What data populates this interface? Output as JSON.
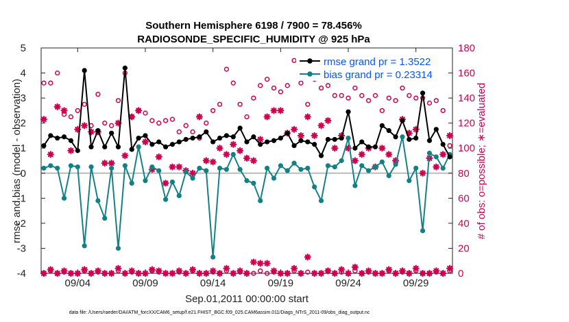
{
  "colors": {
    "rmse": "#000000",
    "bias": "#138086",
    "counts": "#d1004f",
    "legend_text": "#0055ff",
    "zero_line": "#bbbbbb"
  },
  "chart_data": {
    "type": "line",
    "title_line1": "Southern Hemisphere 6198 / 7900 = 78.456%",
    "title_line2": "RADIOSONDE_SPECIFIC_HUMIDITY @ 925 hPa",
    "xlabel": "Sep.01,2011 00:00:00 start",
    "ylabel_left": "rmse and bias (model - observation)",
    "ylabel_right": "# of obs: o=possible; ∗=evaluated",
    "xlim": [
      0.3,
      30.7
    ],
    "ylim_left": [
      -4,
      5
    ],
    "ylim_right": [
      0,
      180
    ],
    "x_ticks": [
      3,
      8,
      13,
      18,
      23,
      28
    ],
    "x_tick_labels": [
      "09/04",
      "09/09",
      "09/14",
      "09/19",
      "09/24",
      "09/29"
    ],
    "yleft_ticks": [
      -4,
      -3,
      -2,
      -1,
      0,
      1,
      2,
      3,
      4,
      5
    ],
    "yleft_tick_labels": [
      "-4",
      "-3",
      "-2",
      "-1",
      "0",
      "1",
      "2",
      "3",
      "4",
      "5"
    ],
    "yright_ticks": [
      0,
      20,
      40,
      60,
      80,
      100,
      120,
      140,
      160,
      180
    ],
    "yright_tick_labels": [
      "0",
      "20",
      "40",
      "60",
      "80",
      "100",
      "120",
      "140",
      "160",
      "180"
    ],
    "legend": [
      "rmse grand pr = 1.3522",
      "bias grand pr = 0.23314"
    ],
    "legend_position": "top-right",
    "footnote": "data file: /Users/raeder/DAI/ATM_forcXX/CAM6_setup/f.e21.FHIST_BGC.f09_025.CAM6assim.011/Diags_NTrS_2011-09/obs_diag_output.nc",
    "x": [
      0.5,
      1.0,
      1.5,
      2.0,
      2.5,
      3.0,
      3.5,
      4.0,
      4.5,
      5.0,
      5.5,
      6.0,
      6.5,
      7.0,
      7.5,
      8.0,
      8.5,
      9.0,
      9.5,
      10.0,
      10.5,
      11.0,
      11.5,
      12.0,
      12.5,
      13.0,
      13.5,
      14.0,
      14.5,
      15.0,
      15.5,
      16.0,
      16.5,
      17.0,
      17.5,
      18.0,
      18.5,
      19.0,
      19.5,
      20.0,
      20.5,
      21.0,
      21.5,
      22.0,
      22.5,
      23.0,
      23.5,
      24.0,
      24.5,
      25.0,
      25.5,
      26.0,
      26.5,
      27.0,
      27.5,
      28.0,
      28.5,
      29.0,
      29.5,
      30.0,
      30.5
    ],
    "series": [
      {
        "name": "rmse",
        "values": [
          1.1,
          1.5,
          1.4,
          1.45,
          1.3,
          0.9,
          4.1,
          1.05,
          1.7,
          1.05,
          1.6,
          1.05,
          4.2,
          0.95,
          1.4,
          1.5,
          1.15,
          1.25,
          1.05,
          1.15,
          1.25,
          1.35,
          1.4,
          1.45,
          1.65,
          1.25,
          1.4,
          1.5,
          1.45,
          1.8,
          1.25,
          1.45,
          1.15,
          1.25,
          1.3,
          1.4,
          1.6,
          1.1,
          1.3,
          1.25,
          1.15,
          0.7,
          1.35,
          1.35,
          1.4,
          2.45,
          1.0,
          1.25,
          1.05,
          1.05,
          1.9,
          1.7,
          1.45,
          2.1,
          1.35,
          1.4,
          3.2,
          1.3,
          1.75,
          1.15,
          0.65
        ]
      },
      {
        "name": "bias",
        "values": [
          0.2,
          0.3,
          0.2,
          -1.0,
          0.3,
          0.25,
          -2.9,
          0.25,
          -1.1,
          -1.8,
          0.2,
          -3.0,
          0.3,
          -0.4,
          1.05,
          -0.3,
          0.25,
          0.1,
          -1.05,
          -0.35,
          -0.9,
          0.05,
          -0.2,
          0.2,
          0.1,
          -3.35,
          0.2,
          0.15,
          0.75,
          0.15,
          -0.3,
          -0.4,
          -1.1,
          0.2,
          -0.2,
          0.3,
          0.1,
          0.4,
          0.15,
          0.2,
          -0.55,
          -1.1,
          0.3,
          0.25,
          0.5,
          1.4,
          -0.5,
          0.3,
          0.1,
          0.25,
          0.45,
          -0.1,
          0.35,
          1.45,
          -0.3,
          0.2,
          -2.3,
          0.8,
          0.65,
          0.2,
          0.75
        ]
      },
      {
        "name": "possible",
        "axis": "right",
        "values": [
          152,
          152,
          160,
          127,
          125,
          130,
          135,
          118,
          143,
          120,
          118,
          138,
          160,
          125,
          130,
          128,
          122,
          120,
          122,
          123,
          113,
          118,
          113,
          108,
          120,
          130,
          135,
          163,
          152,
          135,
          125,
          140,
          150,
          155,
          148,
          145,
          150,
          170,
          152,
          135,
          155,
          148,
          150,
          142,
          142,
          140,
          148,
          142,
          138,
          142,
          130,
          140,
          138,
          148,
          142,
          140,
          140,
          136,
          138,
          130,
          102
        ]
      },
      {
        "name": "evaluated",
        "axis": "right",
        "values": [
          123,
          95,
          133,
          130,
          98,
          115,
          118,
          113,
          113,
          88,
          88,
          120,
          94,
          125,
          130,
          105,
          83,
          93,
          72,
          85,
          85,
          82,
          80,
          125,
          90,
          89,
          100,
          95,
          103,
          98,
          92,
          90,
          107,
          125,
          130,
          130,
          112,
          115,
          110,
          125,
          110,
          118,
          122,
          100,
          110,
          100,
          90,
          95,
          100,
          85,
          100,
          95,
          90,
          123,
          112,
          115,
          80,
          92,
          85,
          95,
          110
        ]
      },
      {
        "name": "possible_near_zero",
        "axis": "right",
        "values": [
          0,
          2,
          0,
          1,
          0,
          0,
          2,
          0,
          1,
          0,
          0,
          2,
          0,
          1,
          0,
          0,
          2,
          1,
          0,
          0,
          1,
          0,
          2,
          0,
          0,
          1,
          0,
          2,
          0,
          1,
          0,
          0,
          2,
          0,
          1,
          0,
          0,
          2,
          0,
          1,
          0,
          0,
          2,
          0,
          1,
          0,
          2,
          0,
          1,
          0,
          0,
          2,
          0,
          1,
          0,
          2,
          0,
          0,
          1,
          0,
          2
        ]
      },
      {
        "name": "evaluated_near_zero",
        "axis": "right",
        "values": [
          0,
          3,
          0,
          2,
          0,
          0,
          3,
          0,
          2,
          0,
          0,
          4,
          0,
          2,
          0,
          0,
          3,
          2,
          0,
          0,
          2,
          0,
          3,
          0,
          0,
          2,
          0,
          4,
          0,
          2,
          0,
          9,
          8,
          8,
          2,
          0,
          0,
          4,
          0,
          13,
          0,
          0,
          2,
          0,
          3,
          0,
          5,
          0,
          2,
          0,
          0,
          3,
          0,
          2,
          0,
          4,
          0,
          0,
          2,
          0,
          4
        ]
      }
    ]
  }
}
